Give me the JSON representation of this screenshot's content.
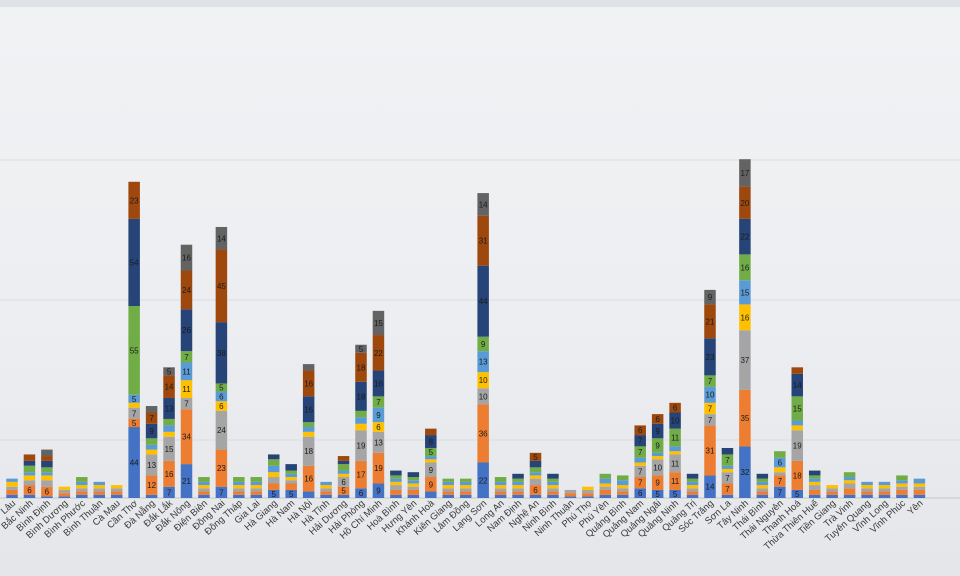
{
  "chart_data": {
    "type": "bar",
    "stacked": true,
    "title": "",
    "xlabel": "",
    "ylabel": "",
    "ylim": [
      0,
      300
    ],
    "grid": true,
    "legend": "none",
    "series_colors": [
      "#4472c4",
      "#ed7d31",
      "#a5a5a5",
      "#ffc000",
      "#5b9bd5",
      "#70ad47",
      "#264478",
      "#9e480e",
      "#636363"
    ],
    "categories": [
      "Lâu",
      "Bắc Ninh",
      "Bình Định",
      "Bình Dương",
      "Bình Phước",
      "Bình Thuận",
      "Cà Mau",
      "Cần Thơ",
      "Đà Nẵng",
      "Đắk Lắk",
      "Đắk Nông",
      "Điện Biên",
      "Đồng Nai",
      "Đồng Tháp",
      "Gia Lai",
      "Hà Giang",
      "Hà Nam",
      "Hà Nội",
      "Hà Tĩnh",
      "Hải Dương",
      "Hải Phòng",
      "Hồ Chí Minh",
      "Hoà Bình",
      "Hưng Yên",
      "Khánh Hoà",
      "Kiên Giang",
      "Lâm Đồng",
      "Lạng Sơn",
      "Long An",
      "Nam Định",
      "Nghệ An",
      "Ninh Bình",
      "Ninh Thuận",
      "Phú Thọ",
      "Phú Yên",
      "Quảng Bình",
      "Quảng Nam",
      "Quảng Ngãi",
      "Quảng Ninh",
      "Quảng Trị",
      "Sóc Trăng",
      "Sơn La",
      "Tây Ninh",
      "Thái Bình",
      "Thái Nguyên",
      "Thanh Hoá",
      "Thừa Thiên Huế",
      "Tiền Giang",
      "Trà Vinh",
      "Tuyên Quang",
      "Vĩnh Long",
      "Vĩnh Phúc",
      "Yên"
    ],
    "stacks": [
      [
        2,
        3,
        2,
        3,
        2
      ],
      [
        2,
        6,
        3,
        3,
        2,
        4,
        3,
        4
      ],
      [
        1,
        6,
        4,
        3,
        2,
        3,
        4,
        3,
        4
      ],
      [
        1,
        2,
        2,
        2
      ],
      [
        2,
        2,
        2,
        2,
        2,
        3
      ],
      [
        2,
        2,
        2,
        2,
        2
      ],
      [
        2,
        2,
        2,
        2
      ],
      [
        44,
        5,
        7,
        3,
        5,
        55,
        54,
        23
      ],
      [
        2,
        12,
        13,
        3,
        3,
        4,
        9,
        7,
        4
      ],
      [
        7,
        16,
        15,
        3,
        4,
        4,
        13,
        14,
        5
      ],
      [
        21,
        34,
        7,
        11,
        11,
        7,
        26,
        24,
        16
      ],
      [
        2,
        2,
        2,
        2,
        2,
        3
      ],
      [
        7,
        23,
        24,
        6,
        6,
        5,
        38,
        45,
        14
      ],
      [
        2,
        2,
        2,
        2,
        2,
        3
      ],
      [
        2,
        2,
        2,
        2,
        2,
        3
      ],
      [
        5,
        4,
        4,
        3,
        4,
        4,
        3
      ],
      [
        5,
        4,
        2,
        2,
        2,
        2,
        4
      ],
      [
        4,
        16,
        18,
        3,
        3,
        3,
        16,
        16,
        4
      ],
      [
        2,
        2,
        2,
        2,
        2
      ],
      [
        2,
        5,
        6,
        2,
        2,
        4,
        2,
        3
      ],
      [
        6,
        17,
        19,
        4,
        4,
        4,
        18,
        18,
        5
      ],
      [
        9,
        19,
        13,
        6,
        9,
        7,
        16,
        22,
        15
      ],
      [
        2,
        3,
        3,
        2,
        2,
        2,
        3
      ],
      [
        2,
        3,
        2,
        2,
        2,
        2,
        3
      ],
      [
        4,
        9,
        9,
        2,
        2,
        5,
        8,
        4
      ],
      [
        2,
        2,
        2,
        2,
        2,
        2
      ],
      [
        2,
        2,
        2,
        2,
        2,
        2
      ],
      [
        22,
        36,
        10,
        10,
        13,
        9,
        44,
        31,
        14
      ],
      [
        2,
        2,
        2,
        2,
        2,
        3
      ],
      [
        2,
        2,
        2,
        2,
        2,
        2,
        3
      ],
      [
        2,
        6,
        4,
        2,
        2,
        3,
        4,
        5
      ],
      [
        2,
        2,
        2,
        2,
        2,
        2,
        3
      ],
      [
        1,
        2,
        2
      ],
      [
        1,
        2,
        2,
        2
      ],
      [
        2,
        3,
        2,
        2,
        3,
        3
      ],
      [
        2,
        2,
        2,
        2,
        3,
        3
      ],
      [
        6,
        7,
        7,
        2,
        3,
        7,
        7,
        6
      ],
      [
        5,
        9,
        10,
        2,
        2,
        9,
        9,
        6
      ],
      [
        5,
        11,
        11,
        2,
        3,
        11,
        10,
        6
      ],
      [
        2,
        2,
        2,
        2,
        2,
        2,
        3
      ],
      [
        14,
        31,
        7,
        7,
        10,
        7,
        23,
        21,
        9
      ],
      [
        2,
        7,
        7,
        2,
        2,
        7,
        4
      ],
      [
        32,
        35,
        37,
        16,
        15,
        16,
        22,
        20,
        17
      ],
      [
        2,
        2,
        2,
        2,
        2,
        2,
        3
      ],
      [
        7,
        7,
        2,
        3,
        6,
        4
      ],
      [
        5,
        18,
        19,
        3,
        3,
        15,
        14,
        4
      ],
      [
        2,
        3,
        3,
        2,
        2,
        2,
        3
      ],
      [
        2,
        2,
        2,
        2
      ],
      [
        2,
        4,
        3,
        2,
        2,
        3
      ],
      [
        2,
        2,
        2,
        2,
        2
      ],
      [
        2,
        2,
        2,
        2,
        2
      ],
      [
        2,
        3,
        2,
        2,
        2,
        3
      ],
      [
        2,
        3,
        2,
        2,
        3
      ]
    ]
  }
}
